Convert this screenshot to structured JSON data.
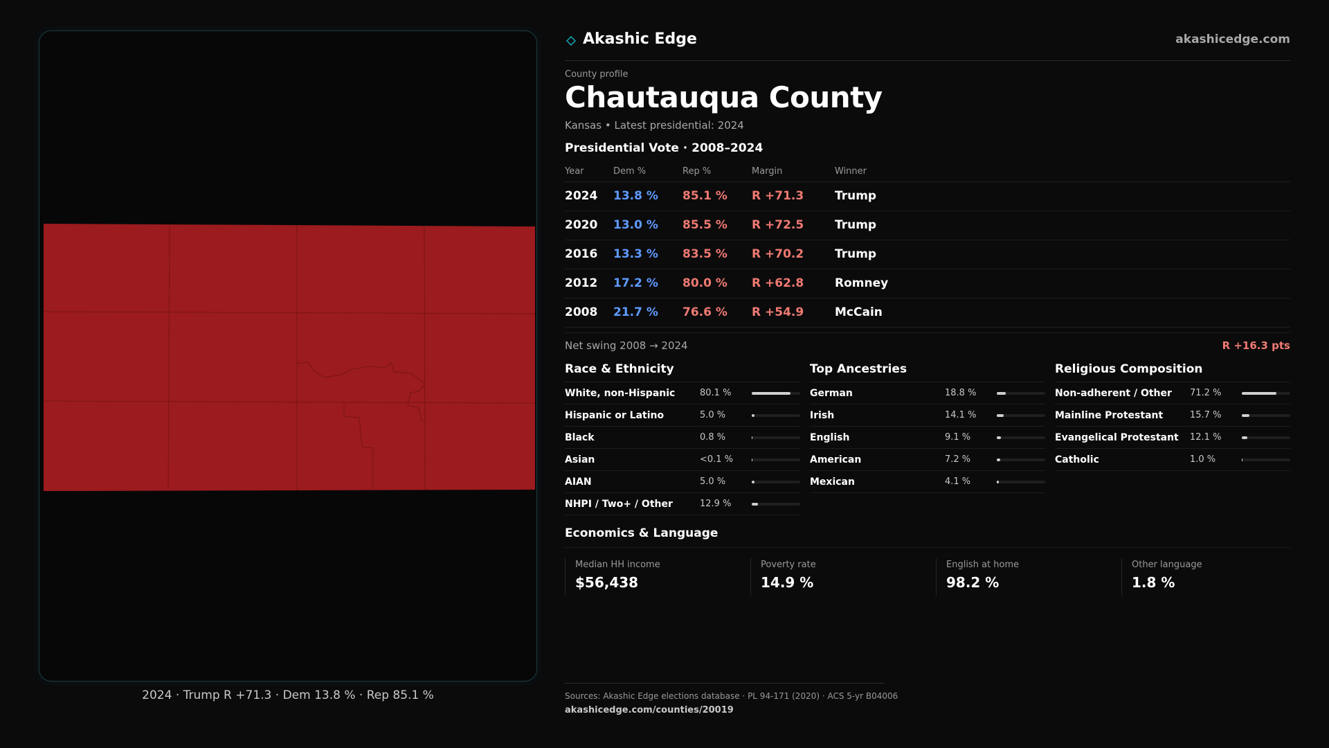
{
  "brand": {
    "name": "Akashic Edge",
    "site": "akashicedge.com",
    "accent_color": "#13a7b8"
  },
  "profile": {
    "eyebrow": "County profile",
    "county": "Chautauqua County",
    "subtitle": "Kansas • Latest presidential: 2024"
  },
  "map": {
    "fill_color": "#9b1b1e",
    "caption": "2024 · Trump R +71.3 · Dem 13.8 % · Rep 85.1 %"
  },
  "vote": {
    "heading": "Presidential Vote · 2008–2024",
    "columns": [
      "Year",
      "Dem %",
      "Rep %",
      "Margin",
      "Winner"
    ],
    "rows": [
      {
        "year": "2024",
        "dem": "13.8 %",
        "rep": "85.1 %",
        "margin": "R +71.3",
        "winner": "Trump"
      },
      {
        "year": "2020",
        "dem": "13.0 %",
        "rep": "85.5 %",
        "margin": "R +72.5",
        "winner": "Trump"
      },
      {
        "year": "2016",
        "dem": "13.3 %",
        "rep": "83.5 %",
        "margin": "R +70.2",
        "winner": "Trump"
      },
      {
        "year": "2012",
        "dem": "17.2 %",
        "rep": "80.0 %",
        "margin": "R +62.8",
        "winner": "Romney"
      },
      {
        "year": "2008",
        "dem": "21.7 %",
        "rep": "76.6 %",
        "margin": "R +54.9",
        "winner": "McCain"
      }
    ],
    "dem_color": "#5f9bff",
    "rep_color": "#f07a72",
    "swing_label": "Net swing 2008 → 2024",
    "swing_value": "R +16.3 pts"
  },
  "race": {
    "heading": "Race & Ethnicity",
    "items": [
      {
        "label": "White, non-Hispanic",
        "value": "80.1 %",
        "level": 0.801
      },
      {
        "label": "Hispanic or Latino",
        "value": "5.0 %",
        "level": 0.05
      },
      {
        "label": "Black",
        "value": "0.8 %",
        "level": 0.008
      },
      {
        "label": "Asian",
        "value": "<0.1 %",
        "level": 0.001
      },
      {
        "label": "AIAN",
        "value": "5.0 %",
        "level": 0.05
      },
      {
        "label": "NHPI / Two+ / Other",
        "value": "12.9 %",
        "level": 0.129
      }
    ]
  },
  "ancestry": {
    "heading": "Top Ancestries",
    "items": [
      {
        "label": "German",
        "value": "18.8 %",
        "level": 0.188
      },
      {
        "label": "Irish",
        "value": "14.1 %",
        "level": 0.141
      },
      {
        "label": "English",
        "value": "9.1 %",
        "level": 0.091
      },
      {
        "label": "American",
        "value": "7.2 %",
        "level": 0.072
      },
      {
        "label": "Mexican",
        "value": "4.1 %",
        "level": 0.041
      }
    ]
  },
  "religion": {
    "heading": "Religious Composition",
    "items": [
      {
        "label": "Non-adherent / Other",
        "value": "71.2 %",
        "level": 0.712
      },
      {
        "label": "Mainline Protestant",
        "value": "15.7 %",
        "level": 0.157
      },
      {
        "label": "Evangelical Protestant",
        "value": "12.1 %",
        "level": 0.121
      },
      {
        "label": "Catholic",
        "value": "1.0 %",
        "level": 0.01
      }
    ]
  },
  "economics": {
    "heading": "Economics & Language",
    "items": [
      {
        "label": "Median HH income",
        "value": "$56,438"
      },
      {
        "label": "Poverty rate",
        "value": "14.9 %"
      },
      {
        "label": "English at home",
        "value": "98.2 %"
      },
      {
        "label": "Other language",
        "value": "1.8 %"
      }
    ]
  },
  "footer": {
    "sources": "Sources: Akashic Edge elections database · PL 94-171 (2020) · ACS 5-yr B04006",
    "url": "akashicedge.com/counties/20019"
  }
}
